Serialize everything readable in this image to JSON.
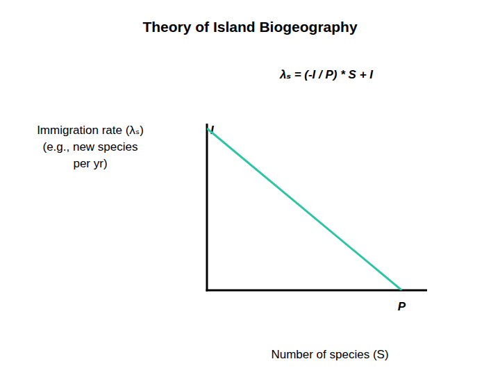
{
  "chart_data": {
    "type": "line",
    "title": "Theory of Island Biogeography",
    "subtitle": "λₛ = (-I / P) * S + I",
    "y_label": [
      "Immigration rate (λₛ)",
      "(e.g., new species",
      "per yr)"
    ],
    "x_label": "Number of species (S)",
    "x": [
      0,
      1
    ],
    "values": [
      1,
      0
    ],
    "color": "#2cc4a2",
    "xlim": [
      0,
      1.13
    ],
    "ylim": [
      0,
      1.03
    ],
    "xticks": [
      {
        "value": 1,
        "label": "P"
      }
    ],
    "yticks": [
      {
        "value": 1,
        "label": "I"
      }
    ],
    "grid": false
  }
}
